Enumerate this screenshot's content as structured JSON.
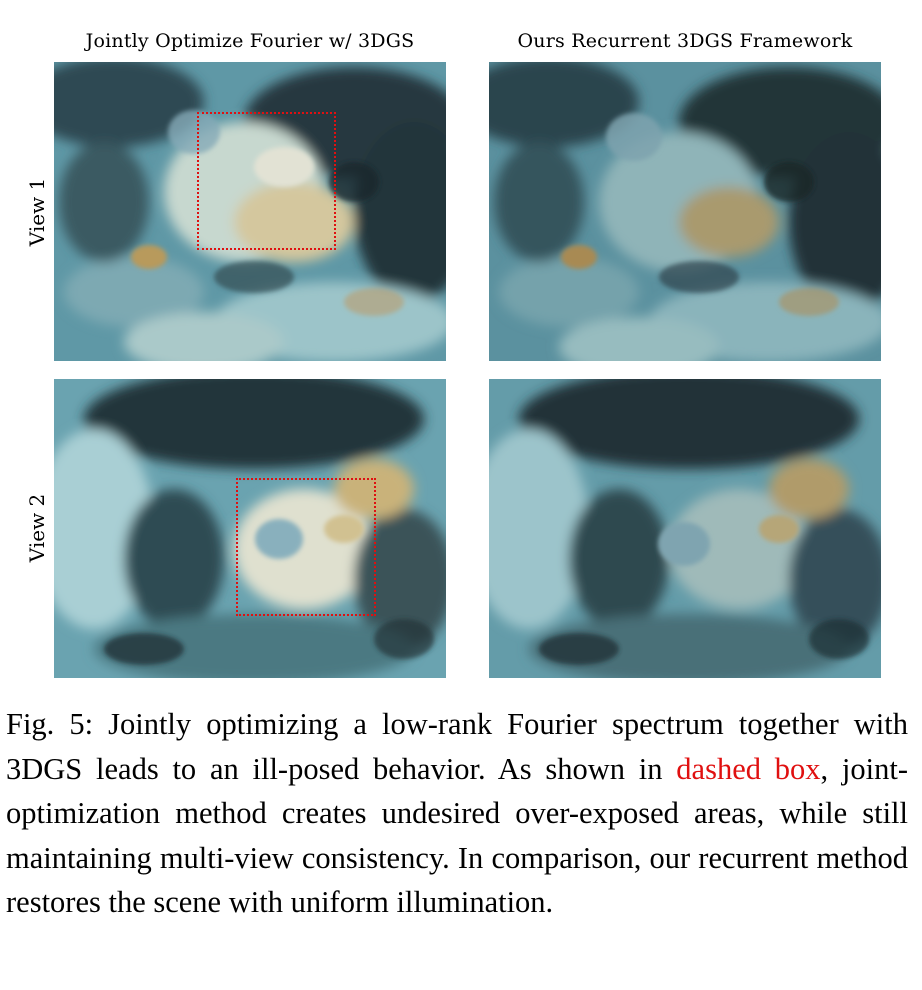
{
  "figure": {
    "columns": [
      "Jointly Optimize Fourier w/ 3DGS",
      "Ours Recurrent 3DGS Framework"
    ],
    "rows": [
      "View 1",
      "View 2"
    ],
    "caption": {
      "before": "Fig. 5: Jointly optimizing a low-rank Fourier spectrum together with 3DGS leads to an ill-posed behavior. As shown in ",
      "highlight": "dashed box",
      "after": ", joint-optimization method creates undesired over-exposed areas, while still maintaining multi-view consistency. In comparison, our recurrent method restores the scene with uniform illumination."
    },
    "colors": {
      "highlight": "#e01010",
      "water": "#5f98a6",
      "rock_dark": "#1f2f35",
      "sand": "#a9cfd4",
      "algae": "#b89a5c"
    }
  }
}
